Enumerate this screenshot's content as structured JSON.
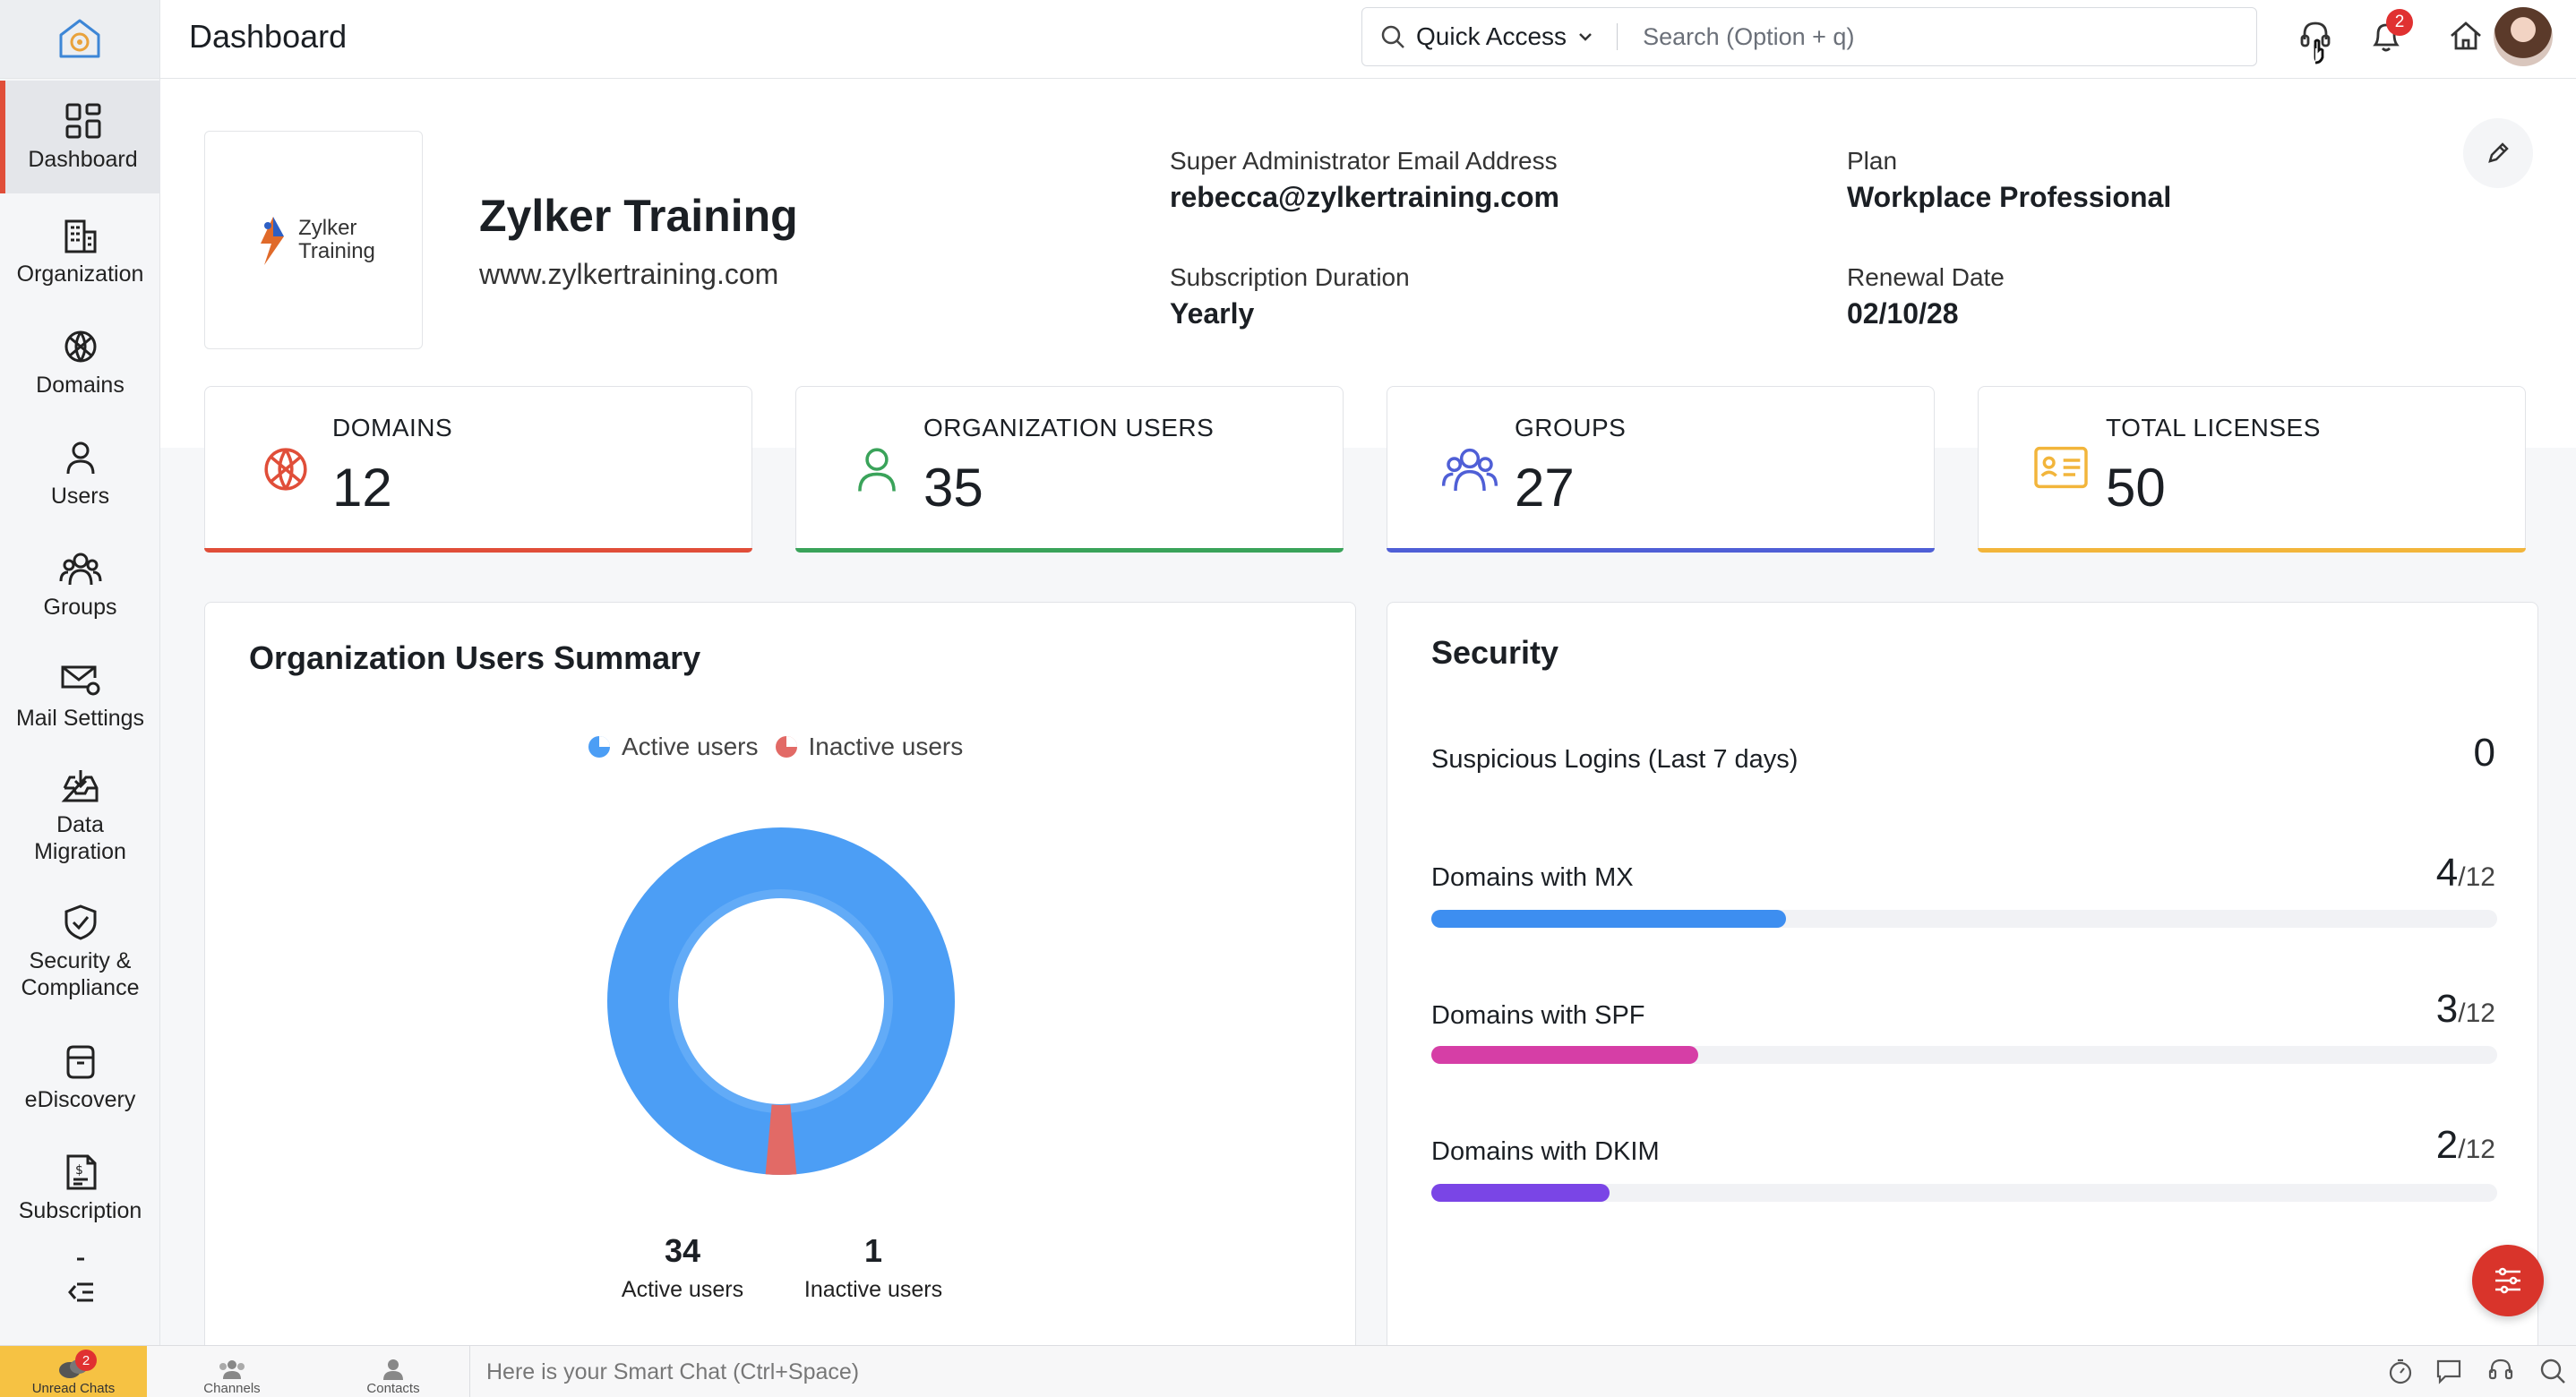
{
  "header": {
    "title": "Dashboard",
    "quick_access": "Quick Access",
    "search_placeholder": "Search (Option + q)",
    "notification_count": "2"
  },
  "sidebar": {
    "items": [
      {
        "label": "Dashboard",
        "icon": "grid-icon",
        "active": true
      },
      {
        "label": "Organization",
        "icon": "building-icon"
      },
      {
        "label": "Domains",
        "icon": "globe-icon"
      },
      {
        "label": "Users",
        "icon": "user-icon"
      },
      {
        "label": "Groups",
        "icon": "group-icon"
      },
      {
        "label": "Mail Settings",
        "icon": "mail-gear-icon"
      },
      {
        "label": "Data Migration",
        "icon": "inbox-download-icon"
      },
      {
        "label": "Security & Compliance",
        "icon": "shield-check-icon"
      },
      {
        "label": "eDiscovery",
        "icon": "archive-box-icon"
      },
      {
        "label": "Subscription",
        "icon": "invoice-icon"
      }
    ]
  },
  "org": {
    "logo_text_1": "Zylker",
    "logo_text_2": "Training",
    "name": "Zylker Training",
    "website": "www.zylkertraining.com",
    "admin_email_label": "Super Administrator Email Address",
    "admin_email": "rebecca@zylkertraining.com",
    "plan_label": "Plan",
    "plan": "Workplace Professional",
    "duration_label": "Subscription Duration",
    "duration": "Yearly",
    "renewal_label": "Renewal Date",
    "renewal": "02/10/28"
  },
  "stats": [
    {
      "label": "DOMAINS",
      "value": "12",
      "color": "#e04e39",
      "icon": "globe-icon"
    },
    {
      "label": "ORGANIZATION USERS",
      "value": "35",
      "color": "#3aa35a",
      "icon": "user-icon"
    },
    {
      "label": "GROUPS",
      "value": "27",
      "color": "#4f5fd6",
      "icon": "group-icon"
    },
    {
      "label": "TOTAL LICENSES",
      "value": "50",
      "color": "#f2b53b",
      "icon": "license-card-icon"
    }
  ],
  "users_summary": {
    "title": "Organization Users Summary",
    "legend_active": "Active users",
    "legend_inactive": "Inactive users",
    "active_count": "34",
    "active_label": "Active users",
    "inactive_count": "1",
    "inactive_label": "Inactive users",
    "active_color": "#4c9ef5",
    "inactive_color": "#e26a66"
  },
  "security": {
    "title": "Security",
    "suspicious_label": "Suspicious Logins (Last 7 days)",
    "suspicious_value": "0",
    "rows": [
      {
        "label": "Domains with MX",
        "value": "4",
        "total": "/12",
        "fraction": 0.333,
        "color": "#3d8ef0"
      },
      {
        "label": "Domains with SPF",
        "value": "3",
        "total": "/12",
        "fraction": 0.25,
        "color": "#d63ea6"
      },
      {
        "label": "Domains with DKIM",
        "value": "2",
        "total": "/12",
        "fraction": 0.167,
        "color": "#7a45e6"
      }
    ]
  },
  "bottom_bar": {
    "unread_label": "Unread Chats",
    "unread_count": "2",
    "channels_label": "Channels",
    "contacts_label": "Contacts",
    "smart_chat_placeholder": "Here is your Smart Chat (Ctrl+Space)"
  }
}
